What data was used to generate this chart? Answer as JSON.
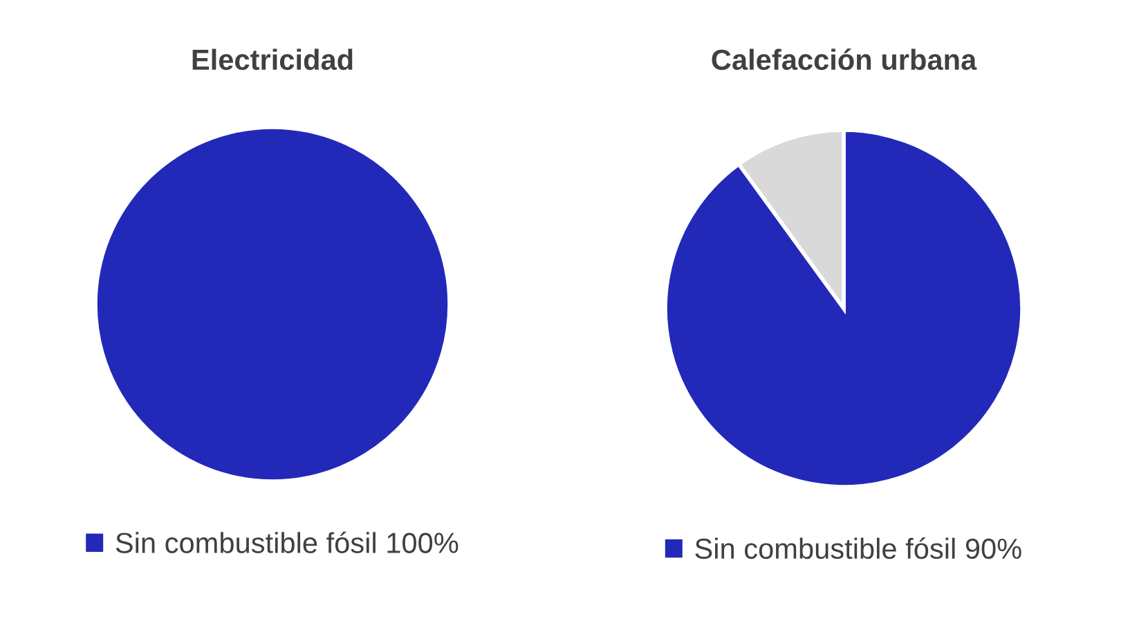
{
  "chart_data": [
    {
      "type": "pie",
      "title": "Electricidad",
      "categories": [
        "Sin combustible fósil 100%"
      ],
      "values": [
        100
      ],
      "colors": [
        "#2229b8"
      ],
      "legend": "bottom"
    },
    {
      "type": "pie",
      "title": "Calefacción urbana",
      "categories": [
        "Sin combustible fósil 90%",
        null
      ],
      "values": [
        90,
        10
      ],
      "colors": [
        "#2229b8",
        "#d9d9d9"
      ],
      "legend": "bottom"
    }
  ]
}
